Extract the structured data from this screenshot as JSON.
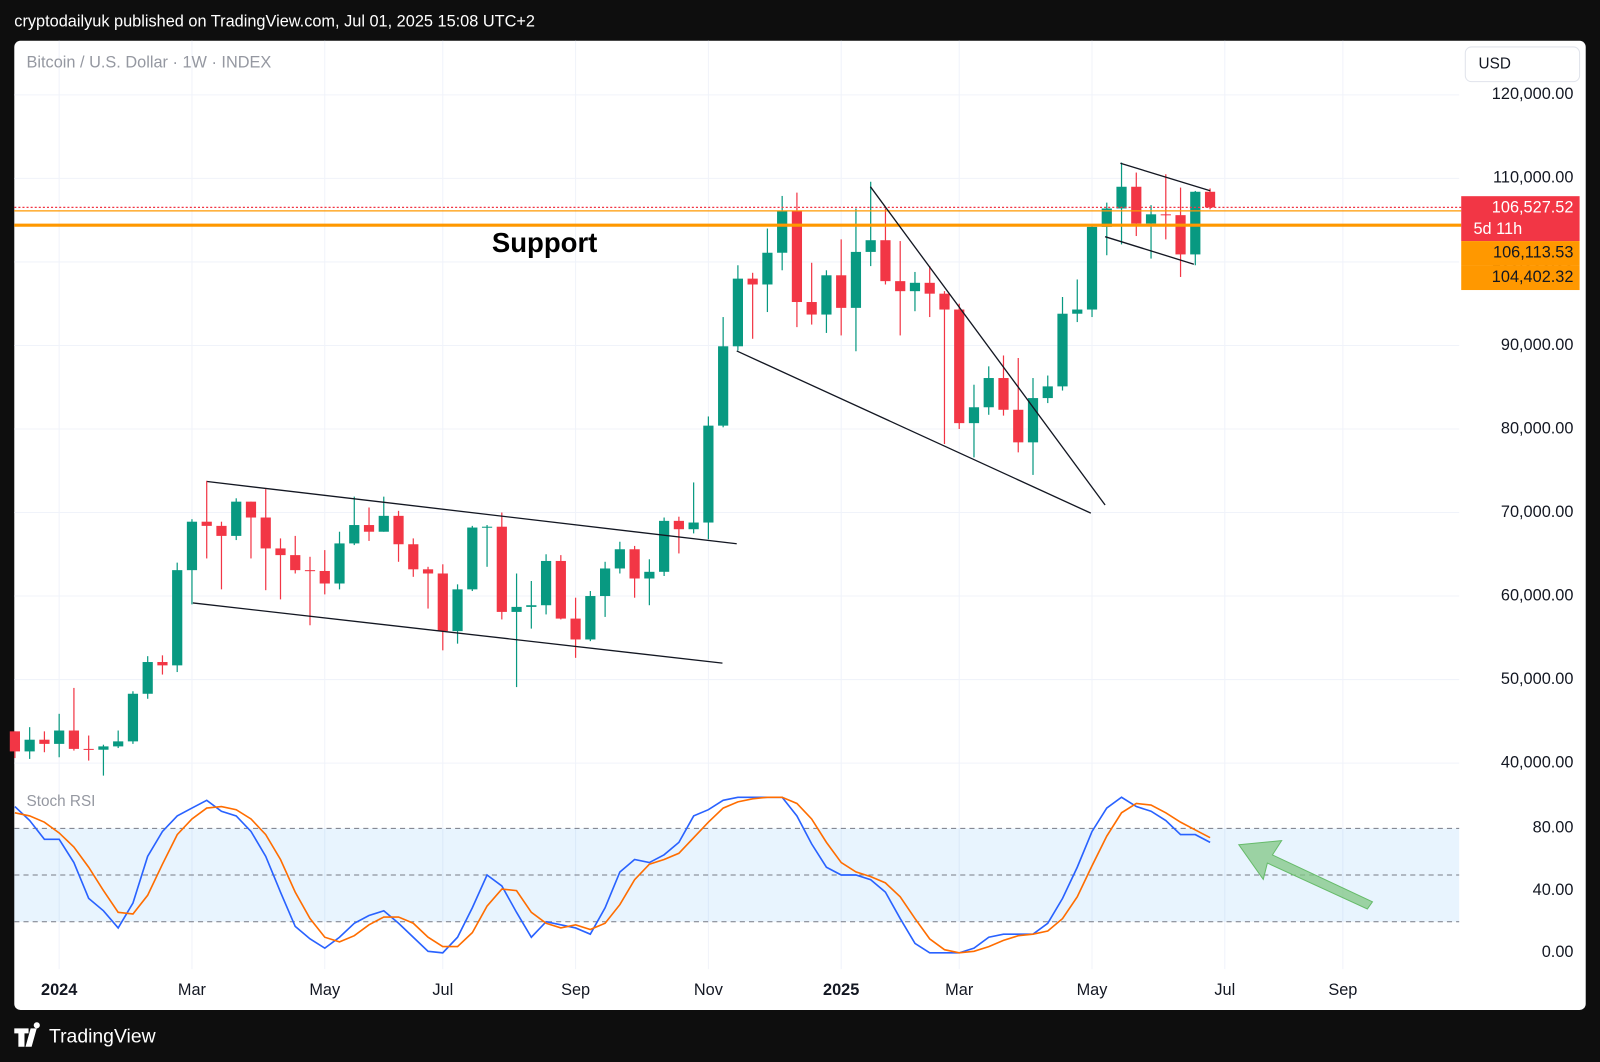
{
  "header": {
    "publisher": "cryptodailyuk published on TradingView.com, Jul 01, 2025 15:08 UTC+2"
  },
  "footer": {
    "brand": "TradingView"
  },
  "chart_data": [
    {
      "type": "candlestick",
      "symbol": "Bitcoin / U.S. Dollar · 1W · INDEX",
      "currency": "USD",
      "annotation": "Support",
      "countdown": "5d 11h",
      "up_color": "#089981",
      "down_color": "#f23645",
      "grid": true,
      "categories": [
        null,
        null,
        null,
        "2024",
        null,
        null,
        null,
        null,
        null,
        null,
        null,
        null,
        "Mar",
        null,
        null,
        null,
        null,
        null,
        null,
        null,
        null,
        "May",
        null,
        null,
        null,
        null,
        null,
        null,
        null,
        "Jul",
        null,
        null,
        null,
        null,
        null,
        null,
        null,
        null,
        "Sep",
        null,
        null,
        null,
        null,
        null,
        null,
        null,
        null,
        "Nov",
        null,
        null,
        null,
        null,
        null,
        null,
        null,
        null,
        "2025",
        null,
        null,
        null,
        null,
        null,
        null,
        null,
        "Mar",
        null,
        null,
        null,
        null,
        null,
        null,
        null,
        null,
        "May",
        null,
        null,
        null,
        null,
        null,
        null,
        null,
        null,
        "Jul",
        null,
        null,
        null,
        null,
        null,
        null,
        null,
        "Sep",
        null,
        null,
        null,
        null,
        null,
        null,
        null
      ],
      "open": [
        43800,
        41400,
        42800,
        42300,
        43900,
        41700,
        41600,
        42000,
        42600,
        48300,
        52100,
        51700,
        63100,
        68900,
        68400,
        67200,
        71300,
        69400,
        65700,
        64900,
        63100,
        63000,
        61500,
        66300,
        68500,
        67700,
        69600,
        66200,
        63200,
        62700,
        55800,
        60800,
        68200,
        68300,
        58100,
        58700,
        58900,
        64200,
        57300,
        54800,
        60000,
        63300,
        65600,
        62100,
        62900,
        69000,
        68000,
        68800,
        80400,
        89900,
        98000,
        97300,
        101100,
        106100,
        95200,
        93700,
        98400,
        94500,
        101200,
        102600,
        97700,
        96500,
        97500,
        96200,
        94300,
        80700,
        82600,
        86100,
        82300,
        78400,
        83700,
        85100,
        93800,
        94300,
        104200,
        106400,
        109000,
        104600,
        105700,
        105600,
        100900,
        108400,
        null,
        null,
        null,
        null,
        null,
        null,
        null,
        null,
        null,
        null,
        null,
        null,
        null,
        null,
        null,
        null
      ],
      "high": [
        43800,
        44300,
        43800,
        45900,
        49000,
        43300,
        42200,
        43900,
        48600,
        52800,
        52900,
        64000,
        69200,
        73800,
        68900,
        71700,
        71300,
        72800,
        66900,
        67200,
        64700,
        65500,
        67700,
        71900,
        70600,
        71900,
        70200,
        66900,
        63500,
        63800,
        61400,
        68400,
        68500,
        70000,
        62700,
        61800,
        65000,
        64900,
        59800,
        60600,
        64100,
        66500,
        66000,
        64400,
        69400,
        69500,
        73600,
        81500,
        93400,
        99600,
        98700,
        104000,
        107900,
        108300,
        99900,
        99000,
        102700,
        106400,
        109600,
        106400,
        102500,
        98800,
        99500,
        96500,
        95000,
        85300,
        87500,
        88800,
        88500,
        86100,
        86400,
        95800,
        97900,
        104300,
        107100,
        111900,
        110700,
        106800,
        110500,
        108900,
        108500,
        108800,
        null,
        null,
        null,
        null,
        null,
        null,
        null,
        null,
        null,
        null,
        null,
        null,
        null,
        null,
        null,
        null
      ],
      "low": [
        40600,
        40500,
        41300,
        40700,
        41500,
        40300,
        38500,
        41800,
        42300,
        47700,
        50600,
        50900,
        59000,
        64500,
        60800,
        66700,
        64500,
        60700,
        59600,
        62700,
        56500,
        60200,
        60800,
        66100,
        66600,
        67700,
        64100,
        62300,
        58500,
        53500,
        54300,
        60600,
        63500,
        57200,
        49100,
        56100,
        57800,
        57200,
        52600,
        54600,
        57500,
        62700,
        59800,
        58900,
        62400,
        65100,
        67500,
        66800,
        80200,
        89400,
        90800,
        94000,
        99000,
        92200,
        92500,
        91500,
        91200,
        89300,
        99500,
        97300,
        91200,
        94100,
        93400,
        78200,
        80000,
        76600,
        81700,
        81600,
        77200,
        74500,
        83100,
        84600,
        92800,
        93400,
        100800,
        102100,
        103100,
        100400,
        102700,
        98200,
        99600,
        106300,
        null,
        null,
        null,
        null,
        null,
        null,
        null,
        null,
        null,
        null,
        null,
        null,
        null,
        null,
        null,
        null
      ],
      "close": [
        41400,
        42800,
        42300,
        43900,
        41700,
        41600,
        42000,
        42600,
        48300,
        52100,
        51700,
        63100,
        68900,
        68400,
        67200,
        71300,
        69400,
        65700,
        64900,
        63100,
        63000,
        61500,
        66300,
        68500,
        67700,
        69600,
        66200,
        63200,
        62700,
        55800,
        60800,
        68200,
        68300,
        58100,
        58700,
        58900,
        64200,
        57300,
        54800,
        60000,
        63300,
        65600,
        62100,
        62900,
        69000,
        68000,
        68800,
        80400,
        89900,
        98000,
        97300,
        101100,
        106100,
        95200,
        93700,
        98400,
        94500,
        101200,
        102600,
        97700,
        96500,
        97500,
        96200,
        94300,
        80700,
        82600,
        86100,
        82300,
        78400,
        83700,
        85100,
        93800,
        94300,
        104200,
        106400,
        109000,
        104600,
        105700,
        105600,
        100900,
        108400,
        106527.52,
        null,
        null,
        null,
        null,
        null,
        null,
        null,
        null,
        null,
        null,
        null,
        null,
        null,
        null,
        null,
        null
      ],
      "ylim": [
        38779,
        126473
      ],
      "yticks": [
        {
          "value": 40000,
          "label": "40,000.00"
        },
        {
          "value": 50000,
          "label": "50,000.00"
        },
        {
          "value": 60000,
          "label": "60,000.00"
        },
        {
          "value": 70000,
          "label": "70,000.00"
        },
        {
          "value": 80000,
          "label": "80,000.00"
        },
        {
          "value": 90000,
          "label": "90,000.00"
        },
        {
          "value": 100000,
          "label": "100,000.00"
        },
        {
          "value": 110000,
          "label": "110,000.00"
        },
        {
          "value": 120000,
          "label": "120,000.00"
        }
      ],
      "price_lines": [
        {
          "value": 106527.52,
          "label": "106,527.52",
          "color": "#f23645"
        },
        {
          "value": 106113.53,
          "label": "106,113.53",
          "color": "#ff9800"
        },
        {
          "value": 104402.32,
          "label": "104,402.32",
          "color": "#ff9800"
        }
      ]
    },
    {
      "type": "line",
      "title": "Stoch RSI",
      "ylim": [
        -10.5,
        110.8
      ],
      "yticks": [
        {
          "value": 0,
          "label": "0.00"
        },
        {
          "value": 40,
          "label": "40.00"
        },
        {
          "value": 80,
          "label": "80.00"
        }
      ],
      "bands": [
        20,
        50,
        80
      ],
      "band_color": "#2196f3",
      "series": [
        {
          "color": "#2962ff",
          "values": [
            94,
            85,
            73,
            73,
            58,
            35,
            27,
            16,
            32,
            62,
            78,
            88,
            93,
            98,
            91,
            88,
            78,
            62,
            39,
            17,
            9,
            3,
            10,
            19,
            24,
            27,
            19,
            10,
            1,
            0,
            10,
            29,
            50,
            43,
            26,
            10,
            20,
            18,
            16,
            12,
            29,
            52,
            60,
            58,
            63,
            71,
            88,
            92,
            98,
            100,
            100,
            100,
            100,
            88,
            70,
            55,
            50,
            50,
            47,
            39,
            22,
            6,
            0,
            0,
            0,
            3,
            10,
            12,
            12,
            12,
            19,
            35,
            55,
            78,
            93,
            100,
            94,
            91,
            85,
            76,
            76,
            71,
            null,
            null,
            null,
            null,
            null,
            null,
            null,
            null,
            null,
            null,
            null,
            null,
            null,
            null,
            null,
            null
          ]
        },
        {
          "color": "#ff6d00",
          "values": [
            90,
            88,
            84,
            77,
            68,
            55,
            40,
            26,
            25,
            37,
            57,
            76,
            86,
            93,
            94,
            92,
            86,
            76,
            60,
            39,
            22,
            10,
            7,
            11,
            18,
            23,
            23,
            19,
            10,
            4,
            4,
            13,
            30,
            41,
            40,
            26,
            19,
            16,
            18,
            15,
            19,
            31,
            47,
            57,
            60,
            64,
            74,
            84,
            93,
            97,
            99,
            100,
            100,
            96,
            86,
            71,
            58,
            52,
            49,
            45,
            36,
            22,
            9,
            2,
            0,
            1,
            4,
            8,
            11,
            12,
            14,
            22,
            36,
            56,
            75,
            90,
            96,
            95,
            90,
            84,
            79,
            74,
            null,
            null,
            null,
            null,
            null,
            null,
            null,
            null,
            null,
            null,
            null,
            null,
            null,
            null,
            null,
            null
          ]
        }
      ]
    }
  ]
}
